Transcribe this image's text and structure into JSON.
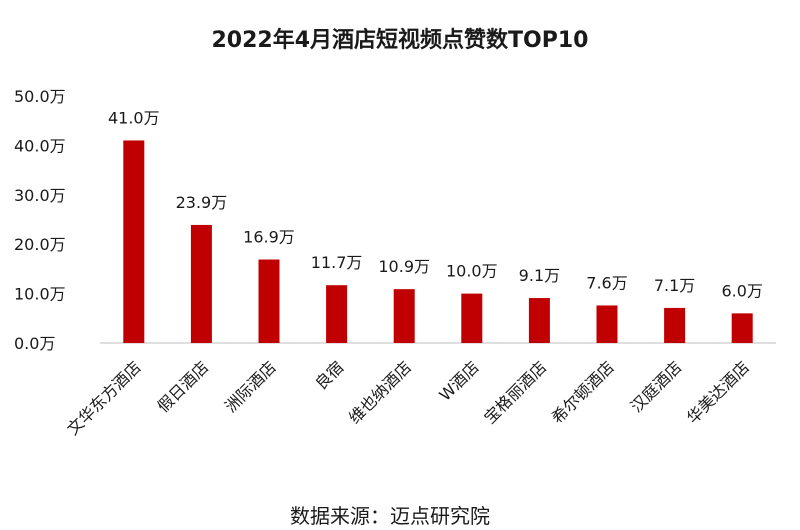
{
  "chart_data": {
    "type": "bar",
    "title": "2022年4月酒店短视频点赞数TOP10",
    "source": "数据来源：迈点研究院",
    "categories": [
      "文华东方酒店",
      "假日酒店",
      "洲际酒店",
      "良宿",
      "维也纳酒店",
      "W酒店",
      "宝格丽酒店",
      "希尔顿酒店",
      "汉庭酒店",
      "华美达酒店"
    ],
    "values": [
      41.0,
      23.9,
      16.9,
      11.7,
      10.9,
      10.0,
      9.1,
      7.6,
      7.1,
      6.0
    ],
    "value_labels": [
      "41.0万",
      "23.9万",
      "16.9万",
      "11.7万",
      "10.9万",
      "10.0万",
      "9.1万",
      "7.6万",
      "7.1万",
      "6.0万"
    ],
    "y_ticks": [
      0,
      10,
      20,
      30,
      40,
      50
    ],
    "y_tick_labels": [
      "0.0万",
      "10.0万",
      "20.0万",
      "30.0万",
      "40.0万",
      "50.0万"
    ],
    "ylim": [
      0,
      50
    ],
    "xlabel": "",
    "ylabel": "",
    "grid": false,
    "legend": "none",
    "colors": {
      "bar": "#c00000",
      "axis": "#bfbfbf",
      "text": "#1a1a1a"
    }
  }
}
